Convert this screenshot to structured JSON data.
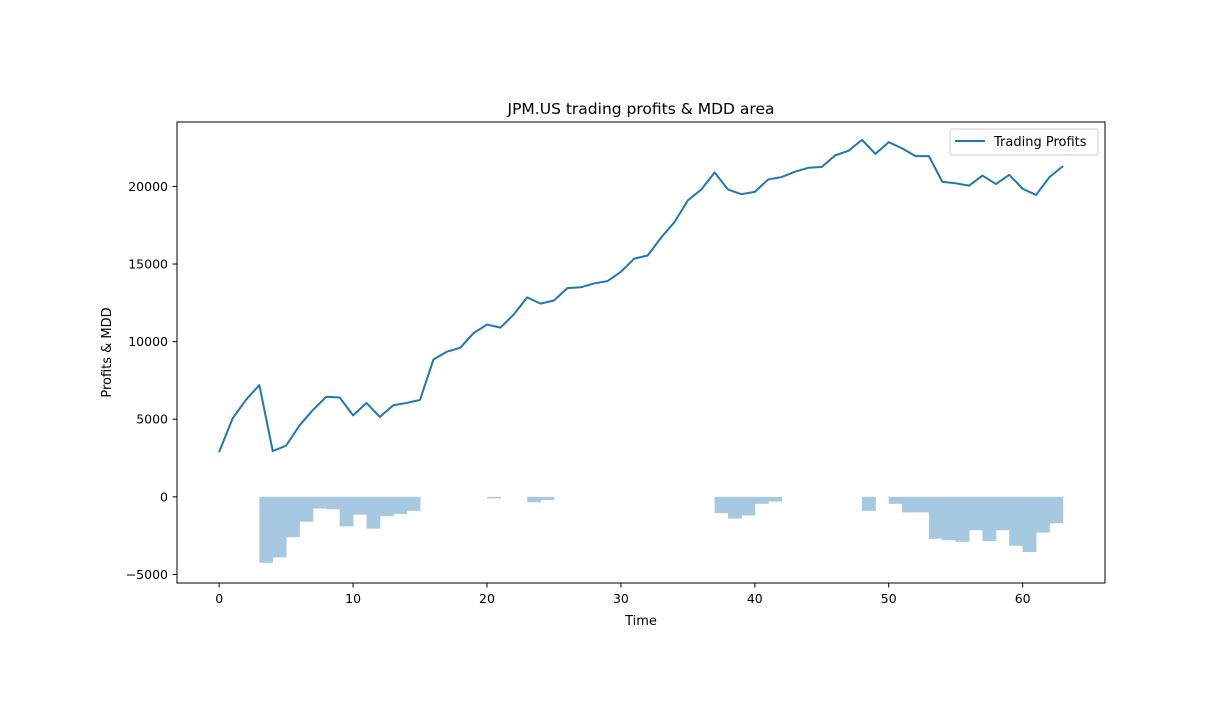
{
  "chart_data": {
    "type": "line",
    "title": "JPM.US trading profits & MDD area",
    "xlabel": "Time",
    "ylabel": "Profits & MDD",
    "xlim": [
      -3.15,
      66.15
    ],
    "ylim": [
      -5550,
      24150
    ],
    "x_ticks": [
      0,
      10,
      20,
      30,
      40,
      50,
      60
    ],
    "y_ticks": [
      -5000,
      0,
      5000,
      10000,
      15000,
      20000
    ],
    "y_tick_labels": [
      "−5000",
      "0",
      "5000",
      "10000",
      "15000",
      "20000"
    ],
    "grid": false,
    "legend_position": "top-right",
    "colors": {
      "line": "#1f77b4",
      "fill": "#a6c8e0",
      "axes": "#000000",
      "background": "#ffffff"
    },
    "series": [
      {
        "name": "Trading Profits",
        "kind": "line",
        "x": [
          0,
          1,
          2,
          3,
          4,
          5,
          6,
          7,
          8,
          9,
          10,
          11,
          12,
          13,
          14,
          15,
          16,
          17,
          18,
          19,
          20,
          21,
          22,
          23,
          24,
          25,
          26,
          27,
          28,
          29,
          30,
          31,
          32,
          33,
          34,
          35,
          36,
          37,
          38,
          39,
          40,
          41,
          42,
          43,
          44,
          45,
          46,
          47,
          48,
          49,
          50,
          51,
          52,
          53,
          54,
          55,
          56,
          57,
          58,
          59,
          60,
          61,
          62,
          63
        ],
        "values": [
          2900,
          5050,
          6250,
          7200,
          2950,
          3300,
          4600,
          5600,
          6450,
          6400,
          5250,
          6050,
          5150,
          5900,
          6050,
          6250,
          8850,
          9350,
          9600,
          10550,
          11100,
          10900,
          11750,
          12850,
          12450,
          12650,
          13450,
          13500,
          13750,
          13900,
          14500,
          15350,
          15550,
          16700,
          17700,
          19100,
          19800,
          20900,
          19800,
          19500,
          19650,
          20450,
          20600,
          20950,
          21200,
          21250,
          22000,
          22300,
          23000,
          22100,
          22850,
          22450,
          21950,
          21950,
          20300,
          20200,
          20050,
          20700,
          20150,
          20750,
          19850,
          19450,
          20600,
          21300
        ]
      },
      {
        "name": "MDD area",
        "kind": "step-fill",
        "x": [
          0,
          1,
          2,
          3,
          4,
          5,
          6,
          7,
          8,
          9,
          10,
          11,
          12,
          13,
          14,
          15,
          16,
          17,
          18,
          19,
          20,
          21,
          22,
          23,
          24,
          25,
          26,
          27,
          28,
          29,
          30,
          31,
          32,
          33,
          34,
          35,
          36,
          37,
          38,
          39,
          40,
          41,
          42,
          43,
          44,
          45,
          46,
          47,
          48,
          49,
          50,
          51,
          52,
          53,
          54,
          55,
          56,
          57,
          58,
          59,
          60,
          61,
          62,
          63
        ],
        "values": [
          0,
          0,
          0,
          -4250,
          -3900,
          -2600,
          -1600,
          -750,
          -800,
          -1900,
          -1150,
          -2050,
          -1250,
          -1100,
          -900,
          0,
          0,
          0,
          0,
          0,
          -100,
          0,
          0,
          -350,
          -200,
          0,
          0,
          0,
          0,
          0,
          0,
          0,
          0,
          0,
          0,
          0,
          0,
          -1050,
          -1400,
          -1200,
          -450,
          -300,
          0,
          0,
          0,
          0,
          0,
          0,
          -900,
          0,
          -450,
          -1000,
          -1000,
          -2700,
          -2800,
          -2900,
          -2150,
          -2850,
          -2150,
          -3150,
          -3550,
          -2300,
          -1700,
          0
        ]
      }
    ]
  }
}
